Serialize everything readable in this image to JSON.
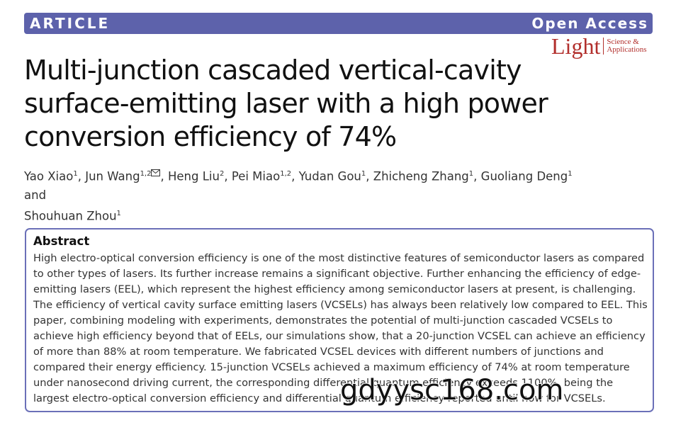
{
  "header": {
    "label": "ARTICLE",
    "access": "Open Access"
  },
  "journal": {
    "name": "Light",
    "subtitle_lines": [
      "Science &",
      "Applications"
    ]
  },
  "title": "Multi-junction cascaded vertical-cavity surface-emitting laser with a high power conversion efficiency of 74%",
  "authors": {
    "separator": ",",
    "conjunction": "and",
    "list": [
      {
        "name": "Yao Xiao",
        "affiliation": "1"
      },
      {
        "name": "Jun Wang",
        "affiliation": "1,2",
        "corresponding": true
      },
      {
        "name": "Heng Liu",
        "affiliation": "2"
      },
      {
        "name": "Pei Miao",
        "affiliation": "1,2"
      },
      {
        "name": "Yudan Gou",
        "affiliation": "1"
      },
      {
        "name": "Zhicheng Zhang",
        "affiliation": "1"
      },
      {
        "name": "Guoliang Deng",
        "affiliation": "1"
      },
      {
        "name": "Shouhuan Zhou",
        "affiliation": "1"
      }
    ]
  },
  "abstract": {
    "heading": "Abstract",
    "lines": [
      "High electro-optical conversion efficiency is one of the most distinctive features of semiconductor lasers as compared",
      "to other types of lasers. Its further increase remains a significant objective. Further enhancing the efficiency of edge-",
      "emitting lasers (EEL), which represent the highest efficiency among semiconductor lasers at present, is challenging.",
      "The efficiency of vertical cavity surface emitting lasers (VCSELs) has always been relatively low compared to EEL. This",
      "paper, combining modeling with experiments, demonstrates the potential of multi-junction cascaded VCSELs to",
      "achieve high efficiency beyond that of EELs, our simulations show, that a 20-junction VCSEL can achieve an efficiency",
      "of more than 88% at room temperature. We fabricated VCSEL devices with different numbers of junctions and",
      "compared their energy efficiency. 15-junction VCSELs achieved a maximum efficiency of 74% at room temperature",
      "under nanosecond driving current, the corresponding differential quantum efficiency exceeds 1100%, being the",
      "largest electro-optical conversion efficiency and differential quantum efficiency reported until now for VCSELs."
    ]
  },
  "watermark": "gdyysc168.com"
}
